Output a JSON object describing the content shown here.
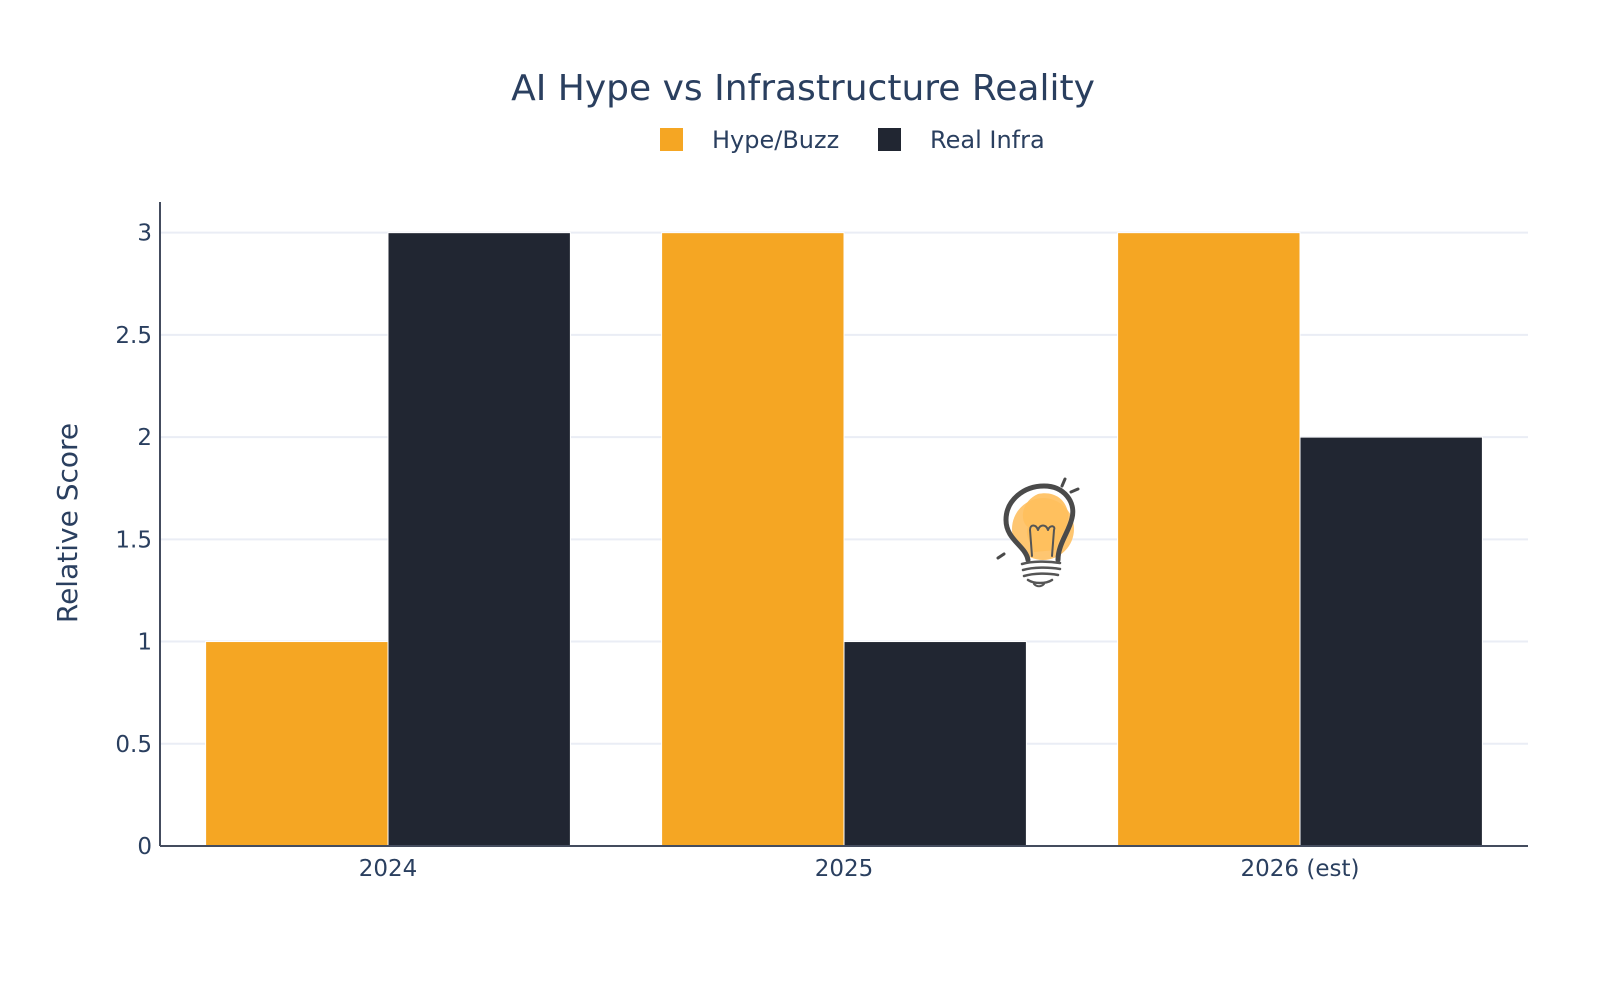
{
  "chart_data": {
    "type": "bar",
    "title": "AI Hype vs Infrastructure Reality",
    "categories": [
      "2024",
      "2025",
      "2026 (est)"
    ],
    "series": [
      {
        "name": "Hype/Buzz",
        "values": [
          1,
          3,
          3
        ],
        "color": "#f5a623"
      },
      {
        "name": "Real Infra",
        "values": [
          3,
          1,
          2
        ],
        "color": "#212632"
      }
    ],
    "xlabel": "",
    "ylabel": "Relative Score",
    "ylim": [
      0,
      3.15
    ],
    "yticks": [
      0,
      0.5,
      1,
      1.5,
      2,
      2.5,
      3
    ],
    "ytick_labels": [
      "0",
      "0.5",
      "1",
      "1.5",
      "2",
      "2.5",
      "3"
    ],
    "grid": true,
    "legend_position": "top-center",
    "decoration_icon": "lightbulb-icon"
  }
}
